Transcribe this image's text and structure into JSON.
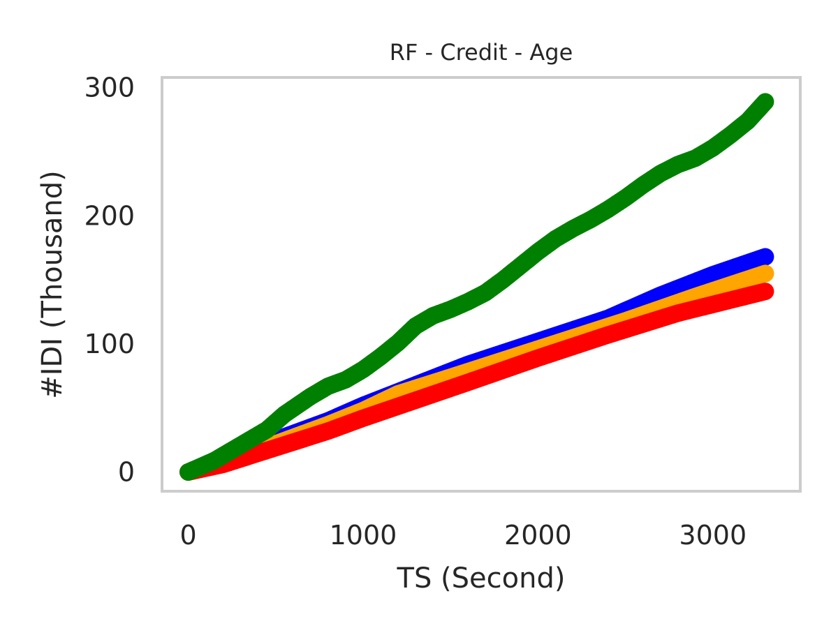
{
  "chart_data": {
    "type": "scatter",
    "title": "RF - Credit - Age",
    "xlabel": "TS (Second)",
    "ylabel": "#IDI (Thousand)",
    "xlim": [
      -150,
      3500
    ],
    "ylim": [
      -15,
      308
    ],
    "xticks": [
      0,
      1000,
      2000,
      3000
    ],
    "yticks": [
      0,
      100,
      200,
      300
    ],
    "grid": false,
    "legend": "none",
    "frame_color": "#cccccc",
    "series": [
      {
        "color": "#0000ff",
        "points": [
          [
            0,
            0
          ],
          [
            200,
            9
          ],
          [
            500,
            25
          ],
          [
            800,
            40
          ],
          [
            1000,
            52
          ],
          [
            1300,
            68
          ],
          [
            1600,
            84
          ],
          [
            2000,
            102
          ],
          [
            2400,
            120
          ],
          [
            2700,
            138
          ],
          [
            3000,
            154
          ],
          [
            3300,
            168
          ]
        ]
      },
      {
        "color": "#ffa500",
        "points": [
          [
            0,
            0
          ],
          [
            200,
            8
          ],
          [
            500,
            22
          ],
          [
            800,
            37
          ],
          [
            1000,
            48
          ],
          [
            1200,
            61
          ],
          [
            1500,
            74
          ],
          [
            2000,
            96
          ],
          [
            2500,
            118
          ],
          [
            2900,
            137
          ],
          [
            3300,
            155
          ]
        ]
      },
      {
        "color": "#ff0000",
        "points": [
          [
            0,
            0
          ],
          [
            200,
            6
          ],
          [
            500,
            19
          ],
          [
            800,
            32
          ],
          [
            1000,
            42
          ],
          [
            1300,
            56
          ],
          [
            1600,
            70
          ],
          [
            2000,
            89
          ],
          [
            2400,
            107
          ],
          [
            2800,
            124
          ],
          [
            3300,
            141
          ]
        ]
      },
      {
        "color": "#008000",
        "points": [
          [
            0,
            0
          ],
          [
            150,
            9
          ],
          [
            300,
            21
          ],
          [
            450,
            33
          ],
          [
            550,
            45
          ],
          [
            700,
            59
          ],
          [
            800,
            67
          ],
          [
            900,
            72
          ],
          [
            1000,
            80
          ],
          [
            1100,
            90
          ],
          [
            1200,
            101
          ],
          [
            1300,
            114
          ],
          [
            1400,
            122
          ],
          [
            1500,
            127
          ],
          [
            1600,
            133
          ],
          [
            1700,
            140
          ],
          [
            1800,
            150
          ],
          [
            1900,
            161
          ],
          [
            2000,
            172
          ],
          [
            2100,
            182
          ],
          [
            2200,
            190
          ],
          [
            2300,
            197
          ],
          [
            2400,
            205
          ],
          [
            2500,
            214
          ],
          [
            2600,
            224
          ],
          [
            2700,
            233
          ],
          [
            2800,
            240
          ],
          [
            2900,
            245
          ],
          [
            3000,
            253
          ],
          [
            3100,
            263
          ],
          [
            3200,
            274
          ],
          [
            3300,
            289
          ]
        ]
      }
    ]
  }
}
